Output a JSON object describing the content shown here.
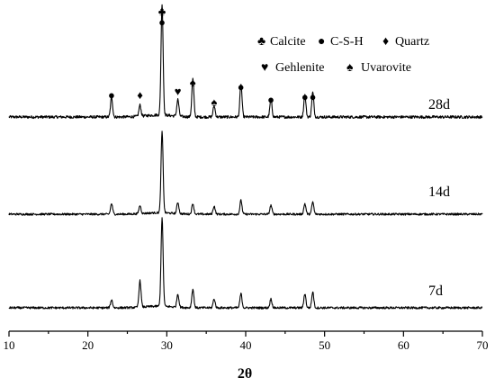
{
  "chart_data": {
    "type": "line",
    "title": "",
    "xlabel": "2θ",
    "ylabel": "",
    "xlim": [
      10,
      70
    ],
    "x_ticks": [
      10,
      20,
      30,
      40,
      50,
      60,
      70
    ],
    "legend": {
      "placement": "top-right",
      "entries": [
        {
          "symbol": "♣",
          "phase": "Calcite"
        },
        {
          "symbol": "●",
          "phase": "C-S-H"
        },
        {
          "symbol": "♦",
          "phase": "Quartz"
        },
        {
          "symbol": "♥",
          "phase": "Gehlenite"
        },
        {
          "symbol": "♠",
          "phase": "Uvarovite"
        }
      ]
    },
    "series": [
      {
        "name": "28d",
        "peaks": [
          {
            "x": 23.0,
            "intensity": 0.18
          },
          {
            "x": 26.6,
            "intensity": 0.1
          },
          {
            "x": 29.4,
            "intensity": 1.0
          },
          {
            "x": 31.4,
            "intensity": 0.15
          },
          {
            "x": 33.3,
            "intensity": 0.34
          },
          {
            "x": 36.0,
            "intensity": 0.1
          },
          {
            "x": 39.4,
            "intensity": 0.3
          },
          {
            "x": 43.2,
            "intensity": 0.16
          },
          {
            "x": 47.5,
            "intensity": 0.2
          },
          {
            "x": 48.5,
            "intensity": 0.22
          }
        ]
      },
      {
        "name": "14d",
        "peaks": [
          {
            "x": 23.0,
            "intensity": 0.13
          },
          {
            "x": 26.6,
            "intensity": 0.1
          },
          {
            "x": 29.4,
            "intensity": 1.0
          },
          {
            "x": 31.4,
            "intensity": 0.14
          },
          {
            "x": 33.3,
            "intensity": 0.13
          },
          {
            "x": 36.0,
            "intensity": 0.1
          },
          {
            "x": 39.4,
            "intensity": 0.17
          },
          {
            "x": 43.2,
            "intensity": 0.11
          },
          {
            "x": 47.5,
            "intensity": 0.13
          },
          {
            "x": 48.5,
            "intensity": 0.15
          }
        ]
      },
      {
        "name": "7d",
        "peaks": [
          {
            "x": 23.0,
            "intensity": 0.09
          },
          {
            "x": 26.6,
            "intensity": 0.3
          },
          {
            "x": 29.4,
            "intensity": 1.0
          },
          {
            "x": 31.4,
            "intensity": 0.15
          },
          {
            "x": 33.3,
            "intensity": 0.21
          },
          {
            "x": 36.0,
            "intensity": 0.1
          },
          {
            "x": 39.4,
            "intensity": 0.16
          },
          {
            "x": 43.2,
            "intensity": 0.1
          },
          {
            "x": 47.5,
            "intensity": 0.16
          },
          {
            "x": 48.5,
            "intensity": 0.18
          }
        ]
      }
    ],
    "annotations": [
      {
        "x": 23.0,
        "symbol": "●"
      },
      {
        "x": 26.6,
        "symbol": "♦"
      },
      {
        "x": 29.4,
        "symbol": "♣"
      },
      {
        "x": 29.4,
        "symbol": "●"
      },
      {
        "x": 31.4,
        "symbol": "♥"
      },
      {
        "x": 33.3,
        "symbol": "♠"
      },
      {
        "x": 36.0,
        "symbol": "♠"
      },
      {
        "x": 39.4,
        "symbol": "●"
      },
      {
        "x": 43.2,
        "symbol": "●"
      },
      {
        "x": 47.5,
        "symbol": "●"
      },
      {
        "x": 48.5,
        "symbol": "●"
      }
    ]
  }
}
